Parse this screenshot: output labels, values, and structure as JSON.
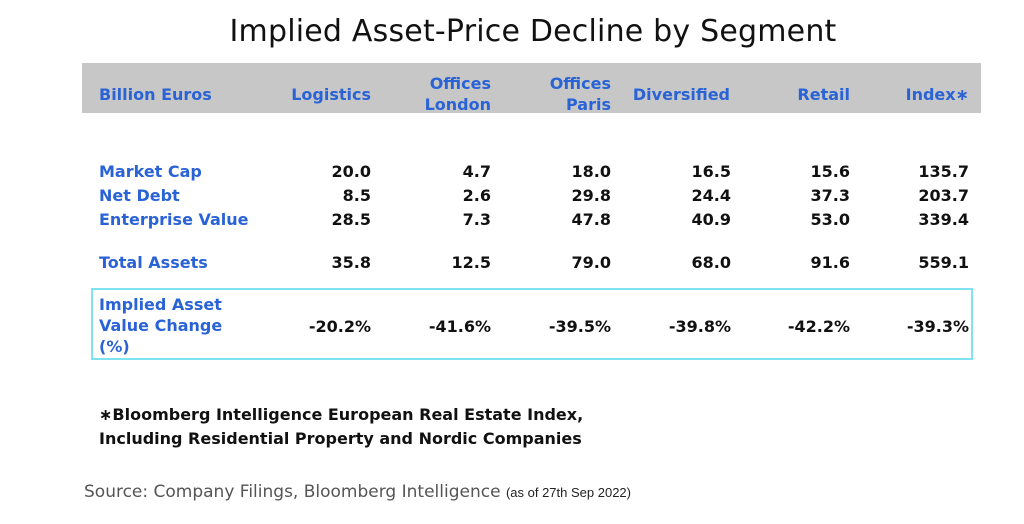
{
  "title": "Implied Asset-Price Decline by Segment",
  "header": {
    "units": "Billion Euros",
    "columns": [
      {
        "line1": "Logistics",
        "line2": ""
      },
      {
        "line1": "Offices",
        "line2": "London"
      },
      {
        "line1": "Offices",
        "line2": "Paris"
      },
      {
        "line1": "Diversified",
        "line2": ""
      },
      {
        "line1": "Retail",
        "line2": ""
      },
      {
        "line1": "Index∗",
        "line2": ""
      }
    ]
  },
  "chart_data": {
    "type": "table",
    "title": "Implied Asset-Price Decline by Segment",
    "columns": [
      "Logistics",
      "Offices London",
      "Offices Paris",
      "Diversified",
      "Retail",
      "Index∗"
    ],
    "rows": [
      {
        "label": "Market Cap",
        "values": [
          "20.0",
          "4.7",
          "18.0",
          "16.5",
          "15.6",
          "135.7"
        ]
      },
      {
        "label": "Net Debt",
        "values": [
          "8.5",
          "2.6",
          "29.8",
          "24.4",
          "37.3",
          "203.7"
        ]
      },
      {
        "label": "Enterprise Value",
        "values": [
          "28.5",
          "7.3",
          "47.8",
          "40.9",
          "53.0",
          "339.4"
        ]
      },
      {
        "label": "Total Assets",
        "values": [
          "35.8",
          "12.5",
          "79.0",
          "68.0",
          "91.6",
          "559.1"
        ]
      }
    ],
    "implied": {
      "label_lines": [
        "Implied Asset",
        "Value Change",
        "(%)"
      ],
      "values": [
        "-20.2%",
        "-41.6%",
        "-39.5%",
        "-39.8%",
        "-42.2%",
        "-39.3%"
      ]
    }
  },
  "footnote": {
    "line1": "∗Bloomberg Intelligence European Real Estate Index,",
    "line2": "Including Residential Property and Nordic Companies"
  },
  "source": {
    "text": "Source: Company Filings, Bloomberg Intelligence",
    "as_of": "(as of 27th Sep 2022)"
  }
}
